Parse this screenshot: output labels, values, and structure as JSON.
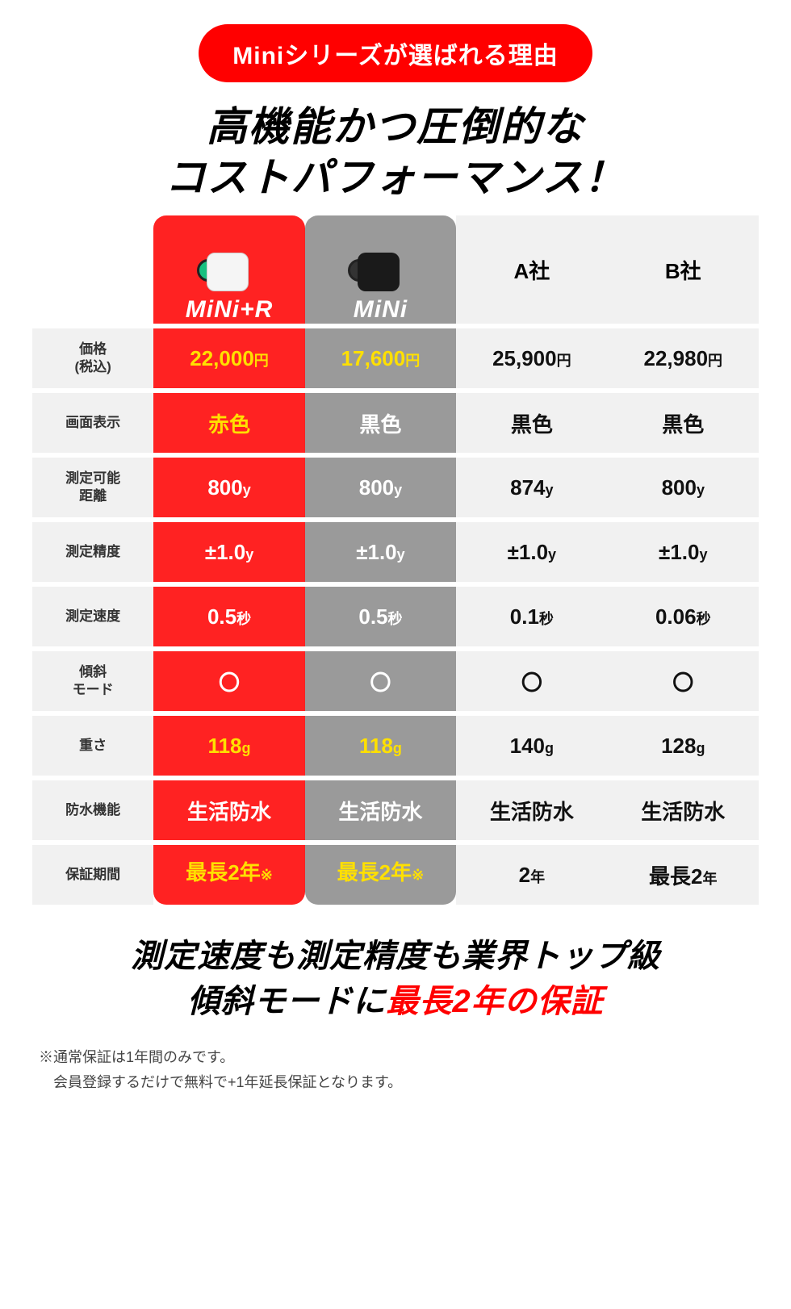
{
  "badge": "Miniシリーズが選ばれる理由",
  "headline_l1": "高機能かつ圧倒的な",
  "headline_l2": "コストパフォーマンス！",
  "columns": {
    "c1": "MiNi+R",
    "c2": "MiNi",
    "c3": "A社",
    "c4": "B社"
  },
  "rows": [
    {
      "label": "価格\n(税込)",
      "v1": "22,000",
      "u1": "円",
      "v2": "17,600",
      "u2": "円",
      "v3": "25,900",
      "u3": "円",
      "v4": "22,980",
      "u4": "円",
      "y1": true,
      "y2": true
    },
    {
      "label": "画面表示",
      "v1": "赤色",
      "u1": "",
      "v2": "黒色",
      "u2": "",
      "v3": "黒色",
      "u3": "",
      "v4": "黒色",
      "u4": "",
      "y1": true,
      "y2": false
    },
    {
      "label": "測定可能\n距離",
      "v1": "800",
      "u1": "y",
      "v2": "800",
      "u2": "y",
      "v3": "874",
      "u3": "y",
      "v4": "800",
      "u4": "y",
      "y1": false,
      "y2": false
    },
    {
      "label": "測定精度",
      "v1": "±1.0",
      "u1": "y",
      "v2": "±1.0",
      "u2": "y",
      "v3": "±1.0",
      "u3": "y",
      "v4": "±1.0",
      "u4": "y",
      "y1": false,
      "y2": false
    },
    {
      "label": "測定速度",
      "v1": "0.5",
      "u1": "秒",
      "v2": "0.5",
      "u2": "秒",
      "v3": "0.1",
      "u3": "秒",
      "v4": "0.06",
      "u4": "秒",
      "y1": false,
      "y2": false
    },
    {
      "label": "傾斜\nモード",
      "v1": "〇",
      "u1": "",
      "v2": "〇",
      "u2": "",
      "v3": "〇",
      "u3": "",
      "v4": "〇",
      "u4": "",
      "y1": false,
      "y2": false
    },
    {
      "label": "重さ",
      "v1": "118",
      "u1": "g",
      "v2": "118",
      "u2": "g",
      "v3": "140",
      "u3": "g",
      "v4": "128",
      "u4": "g",
      "y1": true,
      "y2": true
    },
    {
      "label": "防水機能",
      "v1": "生活防水",
      "u1": "",
      "v2": "生活防水",
      "u2": "",
      "v3": "生活防水",
      "u3": "",
      "v4": "生活防水",
      "u4": "",
      "y1": false,
      "y2": false
    },
    {
      "label": "保証期間",
      "v1": "最長2年",
      "u1": "※",
      "v2": "最長2年",
      "u2": "※",
      "v3": "2",
      "u3": "年",
      "v4": "最長2",
      "u4": "年",
      "y1": true,
      "y2": true
    }
  ],
  "tagline_l1": "測定速度も測定精度も業界トップ級",
  "tagline_l2a": "傾斜モードに",
  "tagline_l2b": "最長2年の保証",
  "footnote_l1": "※通常保証は1年間のみです。",
  "footnote_l2": "　会員登録するだけで無料で+1年延長保証となります。",
  "colors": {
    "accent_red": "#ff2222",
    "highlight_yellow": "#ffe000",
    "col_gray": "#9a9a9a",
    "row_gray": "#f1f1f1",
    "text_black": "#111111"
  }
}
